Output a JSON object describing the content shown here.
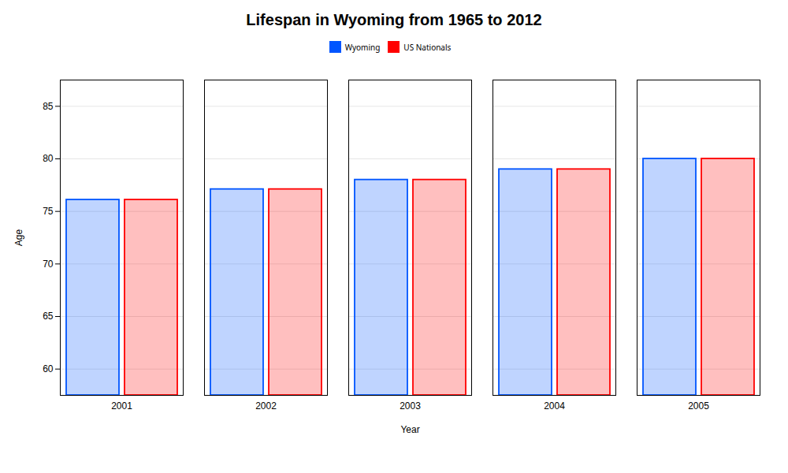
{
  "chart_data": {
    "type": "bar",
    "title": "Lifespan in Wyoming from 1965 to 2012",
    "x_label": "Year",
    "y_label": "Age",
    "categories": [
      "2001",
      "2002",
      "2003",
      "2004",
      "2005"
    ],
    "series": [
      {
        "name": "Wyoming",
        "color": "#0055ff",
        "values": [
          76.1,
          77.1,
          78.0,
          79.0,
          80.0
        ]
      },
      {
        "name": "US Nationals",
        "color": "#ff0000",
        "values": [
          76.1,
          77.1,
          78.0,
          79.0,
          80.0
        ]
      }
    ],
    "ylim": [
      57.5,
      87.5
    ],
    "yticks": [
      60,
      65,
      70,
      75,
      80,
      85
    ],
    "grid": true,
    "legend": "top"
  }
}
